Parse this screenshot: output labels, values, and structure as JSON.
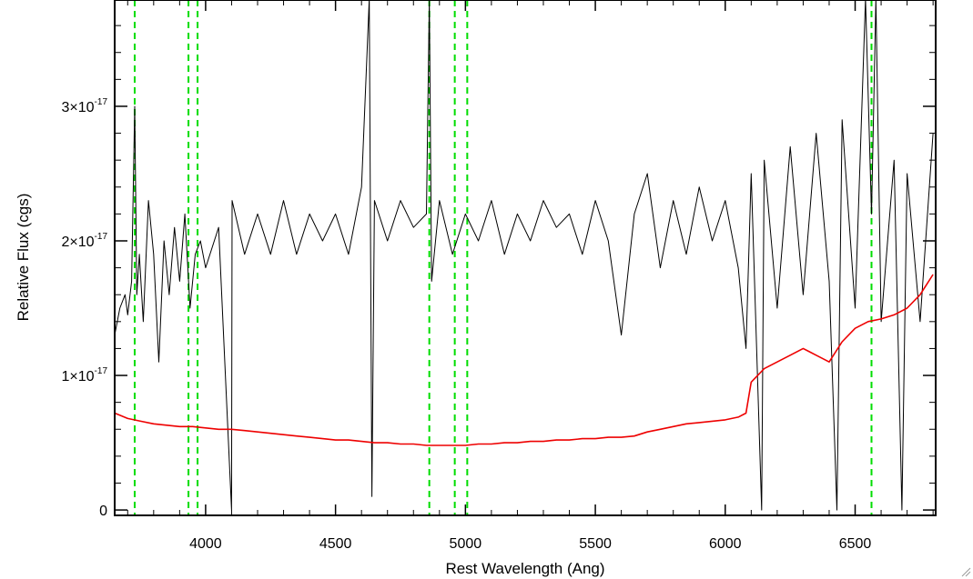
{
  "chart_data": {
    "type": "line",
    "title": "",
    "xlabel": "Rest Wavelength (Ang)",
    "ylabel": "Relative Flux (cgs)",
    "xlim": [
      3650,
      6810
    ],
    "ylim": [
      -4e-19,
      3.79e-17
    ],
    "x_ticks": [
      {
        "value": 4000,
        "label": "4000"
      },
      {
        "value": 4500,
        "label": "4500"
      },
      {
        "value": 5000,
        "label": "5000"
      },
      {
        "value": 5500,
        "label": "5500"
      },
      {
        "value": 6000,
        "label": "6000"
      },
      {
        "value": 6500,
        "label": "6500"
      }
    ],
    "y_ticks": [
      {
        "value": 0,
        "mant": "0",
        "exp": ""
      },
      {
        "value": 1e-17,
        "mant": "1×10",
        "exp": "-17"
      },
      {
        "value": 2e-17,
        "mant": "2×10",
        "exp": "-17"
      },
      {
        "value": 3e-17,
        "mant": "3×10",
        "exp": "-17"
      }
    ],
    "grid": false,
    "vertical_lines": {
      "color": "#00dd00",
      "style": "dashed",
      "x": [
        3727,
        3934,
        3969,
        4861,
        4959,
        5007,
        6563
      ]
    },
    "series": [
      {
        "color": "#000000",
        "x": [
          3650,
          3670,
          3690,
          3700,
          3715,
          3727,
          3735,
          3745,
          3760,
          3780,
          3800,
          3820,
          3840,
          3860,
          3880,
          3900,
          3920,
          3940,
          3960,
          3980,
          4000,
          4050,
          4100,
          4102,
          4150,
          4200,
          4250,
          4300,
          4350,
          4400,
          4450,
          4500,
          4550,
          4600,
          4630,
          4640,
          4650,
          4700,
          4750,
          4800,
          4850,
          4861,
          4870,
          4900,
          4950,
          5000,
          5050,
          5100,
          5150,
          5200,
          5250,
          5300,
          5350,
          5400,
          5450,
          5500,
          5550,
          5600,
          5650,
          5700,
          5750,
          5800,
          5850,
          5900,
          5950,
          6000,
          6050,
          6080,
          6100,
          6140,
          6150,
          6200,
          6250,
          6300,
          6350,
          6400,
          6430,
          6450,
          6500,
          6540,
          6563,
          6580,
          6600,
          6650,
          6680,
          6700,
          6750,
          6800
        ],
        "y": [
          1.3e-17,
          1.5e-17,
          1.6e-17,
          1.45e-17,
          1.7e-17,
          3e-17,
          1.6e-17,
          1.9e-17,
          1.4e-17,
          2.3e-17,
          1.9e-17,
          1.1e-17,
          2e-17,
          1.6e-17,
          2.1e-17,
          1.7e-17,
          2.2e-17,
          1.5e-17,
          1.9e-17,
          2e-17,
          1.8e-17,
          2.1e-17,
          0.0,
          2.3e-17,
          1.9e-17,
          2.2e-17,
          1.9e-17,
          2.3e-17,
          1.9e-17,
          2.2e-17,
          2e-17,
          2.2e-17,
          1.9e-17,
          2.4e-17,
          3.8e-17,
          1e-18,
          2.3e-17,
          2e-17,
          2.3e-17,
          2.1e-17,
          2.2e-17,
          3.8e-17,
          1.7e-17,
          2.3e-17,
          1.9e-17,
          2.2e-17,
          2e-17,
          2.3e-17,
          1.9e-17,
          2.2e-17,
          2e-17,
          2.3e-17,
          2.1e-17,
          2.2e-17,
          1.9e-17,
          2.3e-17,
          2e-17,
          1.3e-17,
          2.2e-17,
          2.5e-17,
          1.8e-17,
          2.3e-17,
          1.9e-17,
          2.4e-17,
          2e-17,
          2.3e-17,
          1.8e-17,
          1.2e-17,
          2.5e-17,
          0.0,
          2.6e-17,
          1.5e-17,
          2.7e-17,
          1.6e-17,
          2.8e-17,
          1.7e-17,
          0.0,
          2.9e-17,
          1.5e-17,
          3.8e-17,
          2.2e-17,
          3.8e-17,
          1.4e-17,
          2.6e-17,
          0.0,
          2.5e-17,
          1.4e-17,
          2.8e-17
        ]
      },
      {
        "color": "#ee0000",
        "x": [
          3650,
          3700,
          3750,
          3800,
          3850,
          3900,
          3950,
          4000,
          4050,
          4100,
          4150,
          4200,
          4250,
          4300,
          4350,
          4400,
          4450,
          4500,
          4550,
          4600,
          4650,
          4700,
          4750,
          4800,
          4850,
          4900,
          4950,
          5000,
          5050,
          5100,
          5150,
          5200,
          5250,
          5300,
          5350,
          5400,
          5450,
          5500,
          5550,
          5600,
          5650,
          5700,
          5750,
          5800,
          5850,
          5900,
          5950,
          6000,
          6050,
          6080,
          6100,
          6150,
          6200,
          6250,
          6300,
          6350,
          6400,
          6450,
          6500,
          6550,
          6600,
          6650,
          6700,
          6750,
          6800
        ],
        "y": [
          7.2e-18,
          6.8e-18,
          6.6e-18,
          6.4e-18,
          6.3e-18,
          6.2e-18,
          6.2e-18,
          6.1e-18,
          6e-18,
          6e-18,
          5.9e-18,
          5.8e-18,
          5.7e-18,
          5.6e-18,
          5.5e-18,
          5.4e-18,
          5.3e-18,
          5.2e-18,
          5.2e-18,
          5.1e-18,
          5e-18,
          5e-18,
          4.9e-18,
          4.9e-18,
          4.8e-18,
          4.8e-18,
          4.8e-18,
          4.8e-18,
          4.9e-18,
          4.9e-18,
          5e-18,
          5e-18,
          5.1e-18,
          5.1e-18,
          5.2e-18,
          5.2e-18,
          5.3e-18,
          5.3e-18,
          5.4e-18,
          5.4e-18,
          5.5e-18,
          5.8e-18,
          6e-18,
          6.2e-18,
          6.4e-18,
          6.5e-18,
          6.6e-18,
          6.7e-18,
          6.9e-18,
          7.2e-18,
          9.5e-18,
          1.05e-17,
          1.1e-17,
          1.15e-17,
          1.2e-17,
          1.15e-17,
          1.1e-17,
          1.25e-17,
          1.35e-17,
          1.4e-17,
          1.42e-17,
          1.45e-17,
          1.5e-17,
          1.6e-17,
          1.75e-17
        ]
      }
    ]
  }
}
